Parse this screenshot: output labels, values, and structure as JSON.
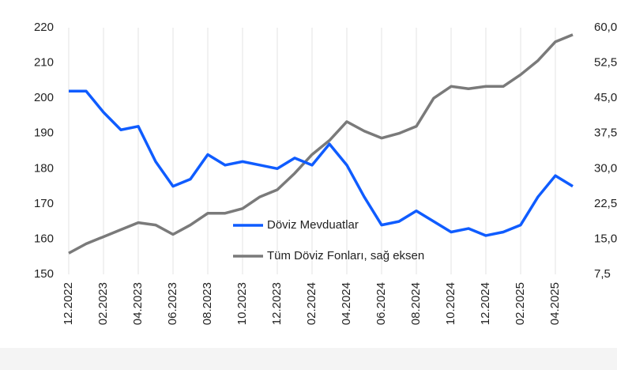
{
  "chart_data": {
    "type": "line",
    "x": [
      "12.2022",
      "01.2023",
      "02.2023",
      "03.2023",
      "04.2023",
      "05.2023",
      "06.2023",
      "07.2023",
      "08.2023",
      "09.2023",
      "10.2023",
      "11.2023",
      "12.2023",
      "01.2024",
      "02.2024",
      "03.2024",
      "04.2024",
      "05.2024",
      "06.2024",
      "07.2024",
      "08.2024",
      "09.2024",
      "10.2024",
      "11.2024",
      "12.2024",
      "01.2025",
      "02.2025",
      "03.2025",
      "04.2025",
      "05.2025"
    ],
    "xticks": [
      "12.2022",
      "02.2023",
      "04.2023",
      "06.2023",
      "08.2023",
      "10.2023",
      "12.2023",
      "02.2024",
      "04.2024",
      "06.2024",
      "08.2024",
      "10.2024",
      "12.2024",
      "02.2025",
      "04.2025"
    ],
    "series": [
      {
        "name": "Döviz Mevduatlar",
        "color": "#0f5cff",
        "values": [
          202,
          202,
          196,
          191,
          192,
          182,
          175,
          177,
          184,
          181,
          182,
          181,
          180,
          183,
          181,
          187,
          181,
          172,
          164,
          165,
          168,
          165,
          162,
          163,
          161,
          162,
          164,
          172,
          178,
          175
        ]
      },
      {
        "name": "Tüm Döviz Fonları, sağ eksen",
        "color": "#7a7a7a",
        "axis": "y2",
        "values": [
          12,
          14,
          15.5,
          17,
          18.5,
          18,
          16,
          18,
          20.5,
          20.5,
          21.5,
          24,
          25.5,
          29,
          33,
          36,
          40,
          38,
          36.5,
          37.5,
          39,
          45,
          47.5,
          47,
          47.5,
          47.5,
          50,
          53,
          57,
          58.5
        ]
      }
    ],
    "ylim": [
      150,
      220
    ],
    "yticks": [
      150,
      160,
      170,
      180,
      190,
      200,
      210,
      220
    ],
    "y2lim": [
      7.5,
      60
    ],
    "y2ticks": [
      {
        "value": 7.5,
        "label": "7,5"
      },
      {
        "value": 15,
        "label": "15,0"
      },
      {
        "value": 22.5,
        "label": "22,5"
      },
      {
        "value": 30,
        "label": "30,0"
      },
      {
        "value": 37.5,
        "label": "37,5"
      },
      {
        "value": 45,
        "label": "45,0"
      },
      {
        "value": 52.5,
        "label": "52,5"
      },
      {
        "value": 60,
        "label": "60,0"
      }
    ],
    "grid": "x"
  }
}
